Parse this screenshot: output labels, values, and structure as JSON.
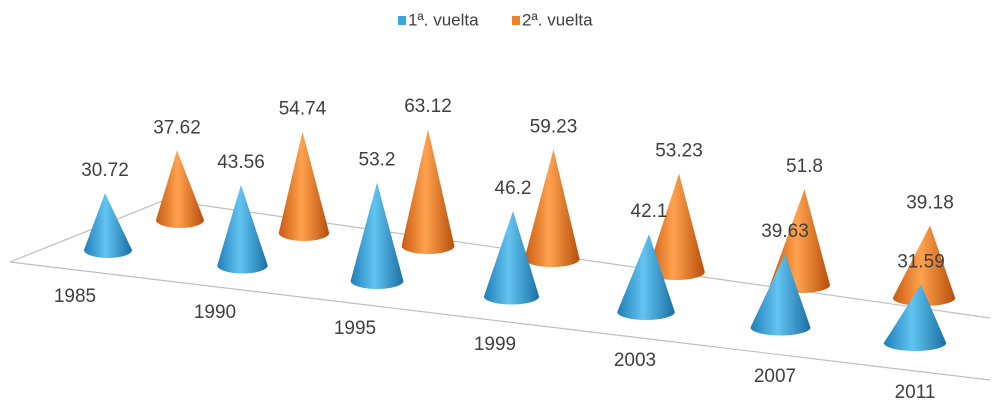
{
  "chart_data": {
    "type": "cone3d",
    "categories": [
      "1985",
      "1990",
      "1995",
      "1999",
      "2003",
      "2007",
      "2011"
    ],
    "series": [
      {
        "name": "1ª. vuelta",
        "color": "#3aa6dd",
        "values": [
          30.72,
          43.56,
          53.2,
          46.2,
          42.1,
          39.63,
          31.59
        ]
      },
      {
        "name": "2ª. vuelta",
        "color": "#f0822a",
        "values": [
          37.62,
          54.74,
          63.12,
          59.23,
          53.23,
          51.8,
          39.18
        ]
      }
    ],
    "legend": "top"
  }
}
